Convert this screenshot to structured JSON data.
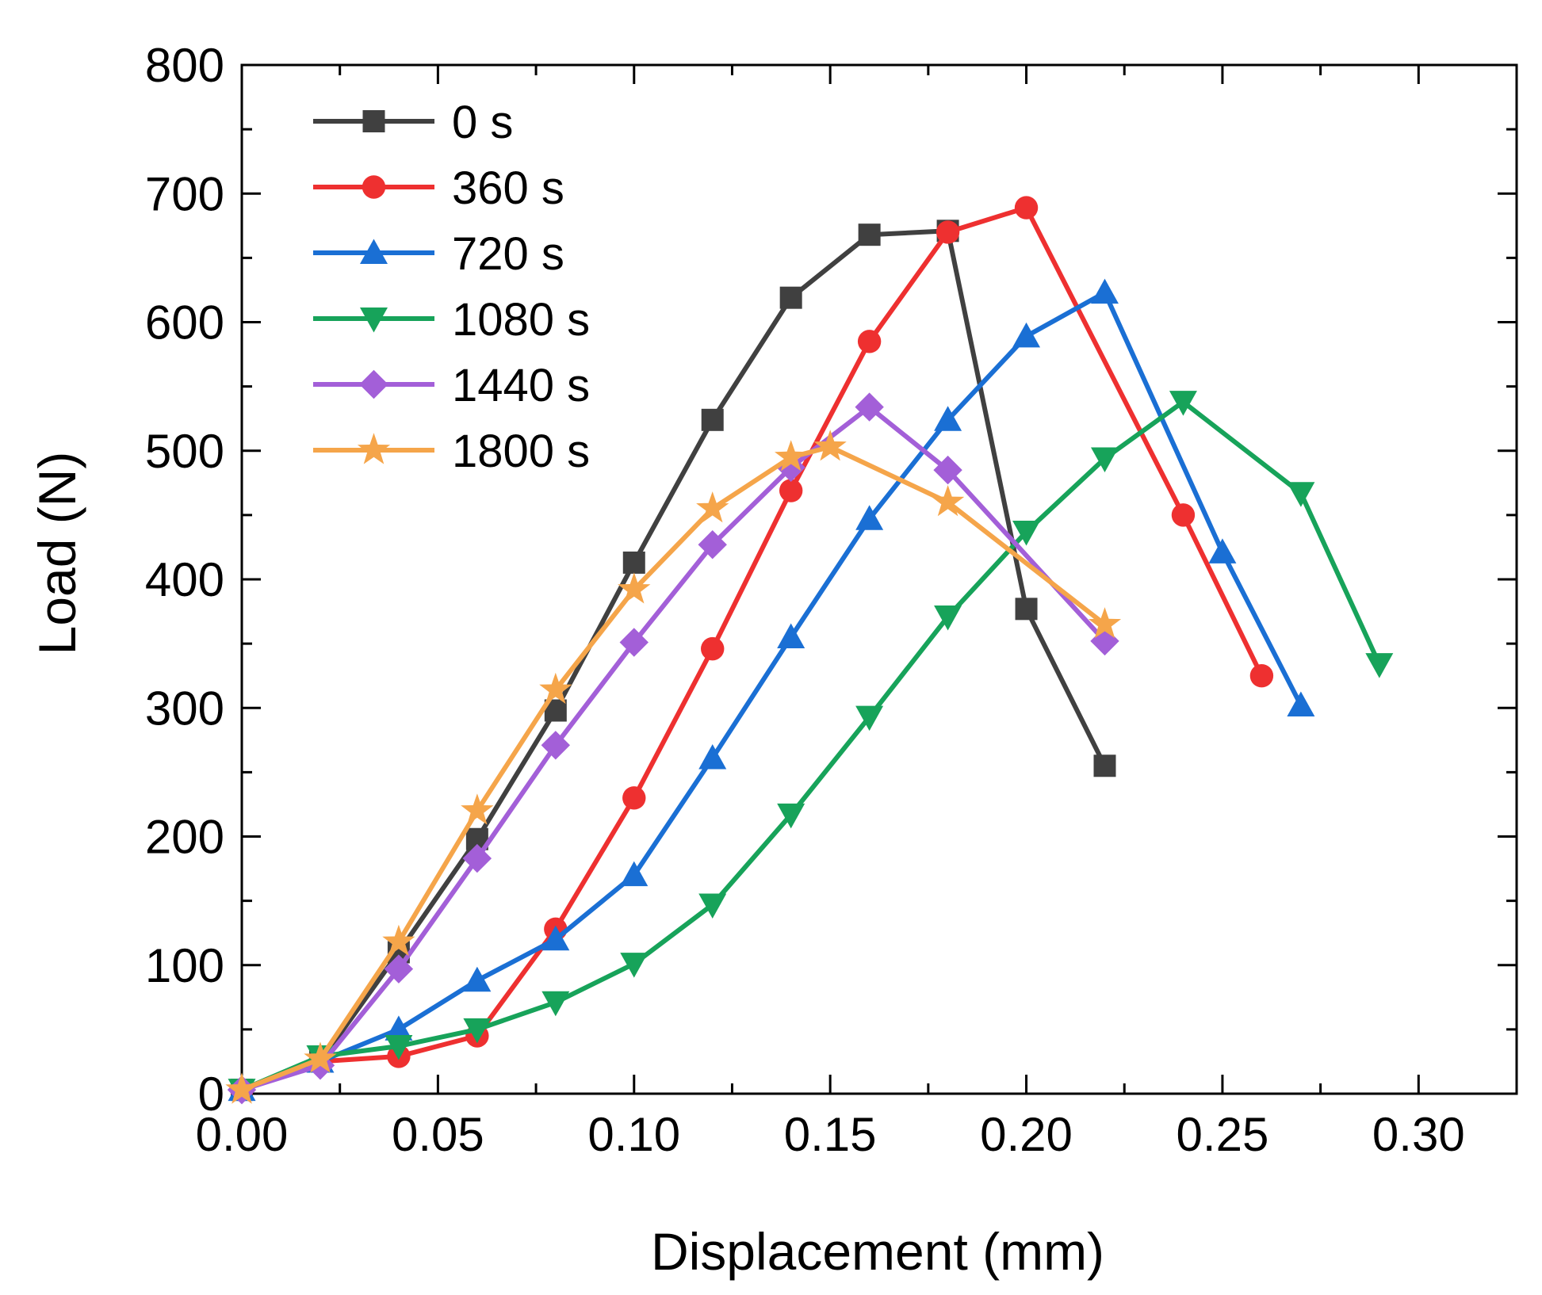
{
  "chart_data": {
    "type": "line",
    "title": "",
    "xlabel": "Displacement (mm)",
    "ylabel": "Load (N)",
    "xlim": [
      0,
      0.325
    ],
    "ylim": [
      0,
      800
    ],
    "x_ticks": [
      "0.00",
      "0.05",
      "0.10",
      "0.15",
      "0.20",
      "0.25",
      "0.30"
    ],
    "y_ticks": [
      "0",
      "100",
      "200",
      "300",
      "400",
      "500",
      "600",
      "700",
      "800"
    ],
    "legend_position": "top-left",
    "grid": false,
    "series": [
      {
        "name": "0 s",
        "color": "#404040",
        "marker": "square",
        "x": [
          0,
          0.02,
          0.04,
          0.06,
          0.08,
          0.1,
          0.12,
          0.14,
          0.16,
          0.18,
          0.2,
          0.22
        ],
        "y": [
          3,
          25,
          110,
          198,
          298,
          413,
          524,
          619,
          668,
          671,
          377,
          255
        ]
      },
      {
        "name": "360 s",
        "color": "#ee3030",
        "marker": "circle",
        "x": [
          0,
          0.02,
          0.04,
          0.06,
          0.08,
          0.1,
          0.12,
          0.14,
          0.16,
          0.18,
          0.2,
          0.24,
          0.26
        ],
        "y": [
          3,
          25,
          29,
          45,
          128,
          230,
          346,
          469,
          585,
          670,
          689,
          450,
          325
        ]
      },
      {
        "name": "720 s",
        "color": "#1a6fd4",
        "marker": "triangle-up",
        "x": [
          0,
          0.02,
          0.04,
          0.06,
          0.08,
          0.1,
          0.12,
          0.14,
          0.16,
          0.18,
          0.2,
          0.22,
          0.25,
          0.27
        ],
        "y": [
          3,
          25,
          50,
          88,
          120,
          170,
          261,
          355,
          447,
          524,
          589,
          623,
          421,
          302
        ]
      },
      {
        "name": "1080 s",
        "color": "#17a35a",
        "marker": "triangle-down",
        "x": [
          0,
          0.02,
          0.04,
          0.06,
          0.08,
          0.1,
          0.12,
          0.14,
          0.16,
          0.18,
          0.2,
          0.22,
          0.24,
          0.27,
          0.29
        ],
        "y": [
          3,
          29,
          37,
          50,
          71,
          101,
          147,
          217,
          293,
          371,
          437,
          494,
          538,
          467,
          334
        ]
      },
      {
        "name": "1440 s",
        "color": "#a35fd8",
        "marker": "diamond",
        "x": [
          0,
          0.02,
          0.04,
          0.06,
          0.08,
          0.1,
          0.12,
          0.14,
          0.16,
          0.18,
          0.22
        ],
        "y": [
          3,
          22,
          97,
          183,
          271,
          351,
          427,
          487,
          534,
          485,
          352
        ]
      },
      {
        "name": "1800 s",
        "color": "#f5a54a",
        "marker": "star",
        "x": [
          0,
          0.02,
          0.04,
          0.06,
          0.08,
          0.1,
          0.12,
          0.14,
          0.15,
          0.18,
          0.22
        ],
        "y": [
          3,
          27,
          118,
          220,
          314,
          392,
          455,
          495,
          503,
          460,
          365
        ]
      }
    ]
  }
}
